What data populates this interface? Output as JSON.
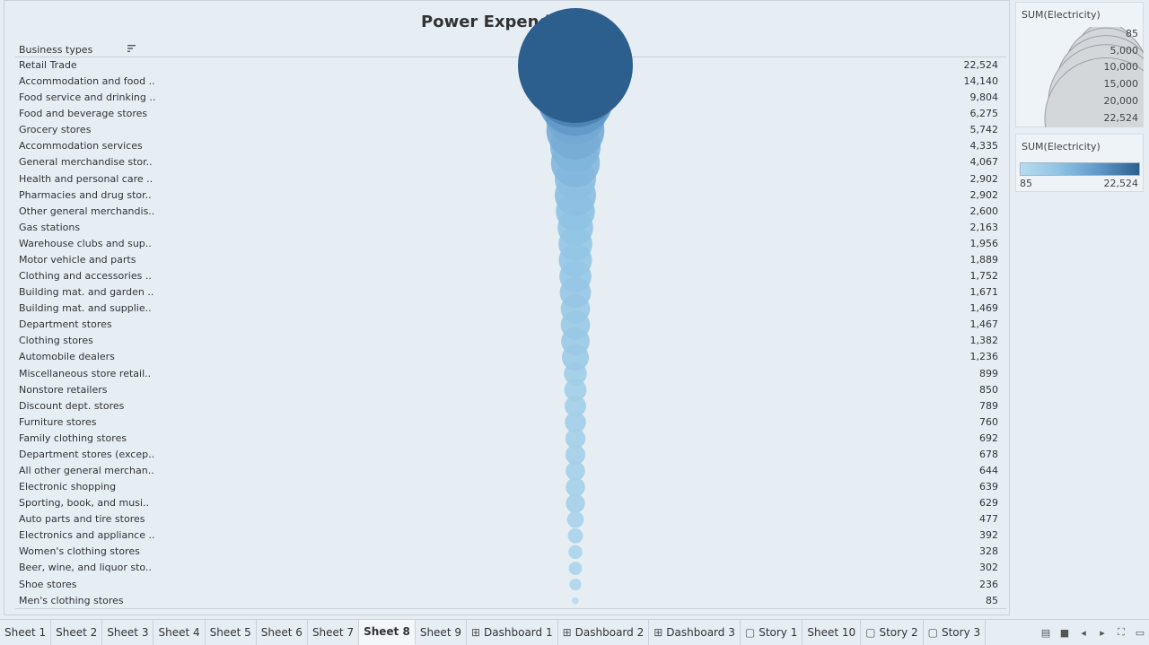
{
  "chart_data": {
    "type": "bubble",
    "title": "Power Expenditure",
    "row_field": "Business types",
    "measure": "SUM(Electricity)",
    "categories": [
      "Retail Trade",
      "Accommodation and food ..",
      "Food service and drinking ..",
      "Food and beverage stores",
      "Grocery stores",
      "Accommodation services",
      "General merchandise stor..",
      "Health and personal care ..",
      "Pharmacies and drug stor..",
      "Other general merchandis..",
      "Gas stations",
      "Warehouse clubs and sup..",
      "Motor vehicle and parts",
      "Clothing and accessories ..",
      "Building mat. and garden ..",
      "Building mat. and supplie..",
      "Department stores",
      "Clothing stores",
      "Automobile dealers",
      "Miscellaneous store retail..",
      "Nonstore retailers",
      "Discount dept. stores",
      "Furniture stores",
      "Family clothing stores",
      "Department stores (excep..",
      "All other general merchan..",
      "Electronic shopping",
      "Sporting, book, and musi..",
      "Auto parts and tire stores",
      "Electronics and appliance ..",
      "Women's clothing stores",
      "Beer, wine, and liquor sto..",
      "Shoe stores",
      "Men's clothing stores"
    ],
    "values": [
      22524,
      14140,
      9804,
      6275,
      5742,
      4335,
      4067,
      2902,
      2902,
      2600,
      2163,
      1956,
      1889,
      1752,
      1671,
      1469,
      1467,
      1382,
      1236,
      899,
      850,
      789,
      760,
      692,
      678,
      644,
      639,
      629,
      477,
      392,
      328,
      302,
      236,
      85
    ],
    "value_labels": [
      "22,524",
      "14,140",
      "9,804",
      "6,275",
      "5,742",
      "4,335",
      "4,067",
      "2,902",
      "2,902",
      "2,600",
      "2,163",
      "1,956",
      "1,889",
      "1,752",
      "1,671",
      "1,469",
      "1,467",
      "1,382",
      "1,236",
      "899",
      "850",
      "789",
      "760",
      "692",
      "678",
      "644",
      "639",
      "629",
      "477",
      "392",
      "328",
      "302",
      "236",
      "85"
    ],
    "size_legend": {
      "title": "SUM(Electricity)",
      "values": [
        85,
        5000,
        10000,
        15000,
        20000,
        22524
      ],
      "labels": [
        "85",
        "5,000",
        "10,000",
        "15,000",
        "20,000",
        "22,524"
      ]
    },
    "color_legend": {
      "title": "SUM(Electricity)",
      "min": "85",
      "max": "22,524",
      "colors": [
        "#b7dcef",
        "#8fc2e3",
        "#5f97c8",
        "#2d5f8e"
      ]
    }
  },
  "tabs": [
    {
      "label": "Sheet 1",
      "icon": "",
      "active": false
    },
    {
      "label": "Sheet 2",
      "icon": "",
      "active": false
    },
    {
      "label": "Sheet 3",
      "icon": "",
      "active": false
    },
    {
      "label": "Sheet 4",
      "icon": "",
      "active": false
    },
    {
      "label": "Sheet 5",
      "icon": "",
      "active": false
    },
    {
      "label": "Sheet 6",
      "icon": "",
      "active": false
    },
    {
      "label": "Sheet 7",
      "icon": "",
      "active": false
    },
    {
      "label": "Sheet 8",
      "icon": "",
      "active": true
    },
    {
      "label": "Sheet 9",
      "icon": "",
      "active": false
    },
    {
      "label": "Dashboard 1",
      "icon": "dashboard-icon",
      "active": false
    },
    {
      "label": "Dashboard 2",
      "icon": "dashboard-icon",
      "active": false
    },
    {
      "label": "Dashboard 3",
      "icon": "dashboard-icon",
      "active": false
    },
    {
      "label": "Story 1",
      "icon": "story-icon",
      "active": false
    },
    {
      "label": "Sheet 10",
      "icon": "",
      "active": false
    },
    {
      "label": "Story 2",
      "icon": "story-icon",
      "active": false
    },
    {
      "label": "Story 3",
      "icon": "story-icon",
      "active": false
    }
  ],
  "tab_controls": [
    "filmstrip-icon",
    "tabs-icon",
    "prev-icon",
    "next-icon",
    "fullscreen-icon",
    "presentation-icon"
  ]
}
